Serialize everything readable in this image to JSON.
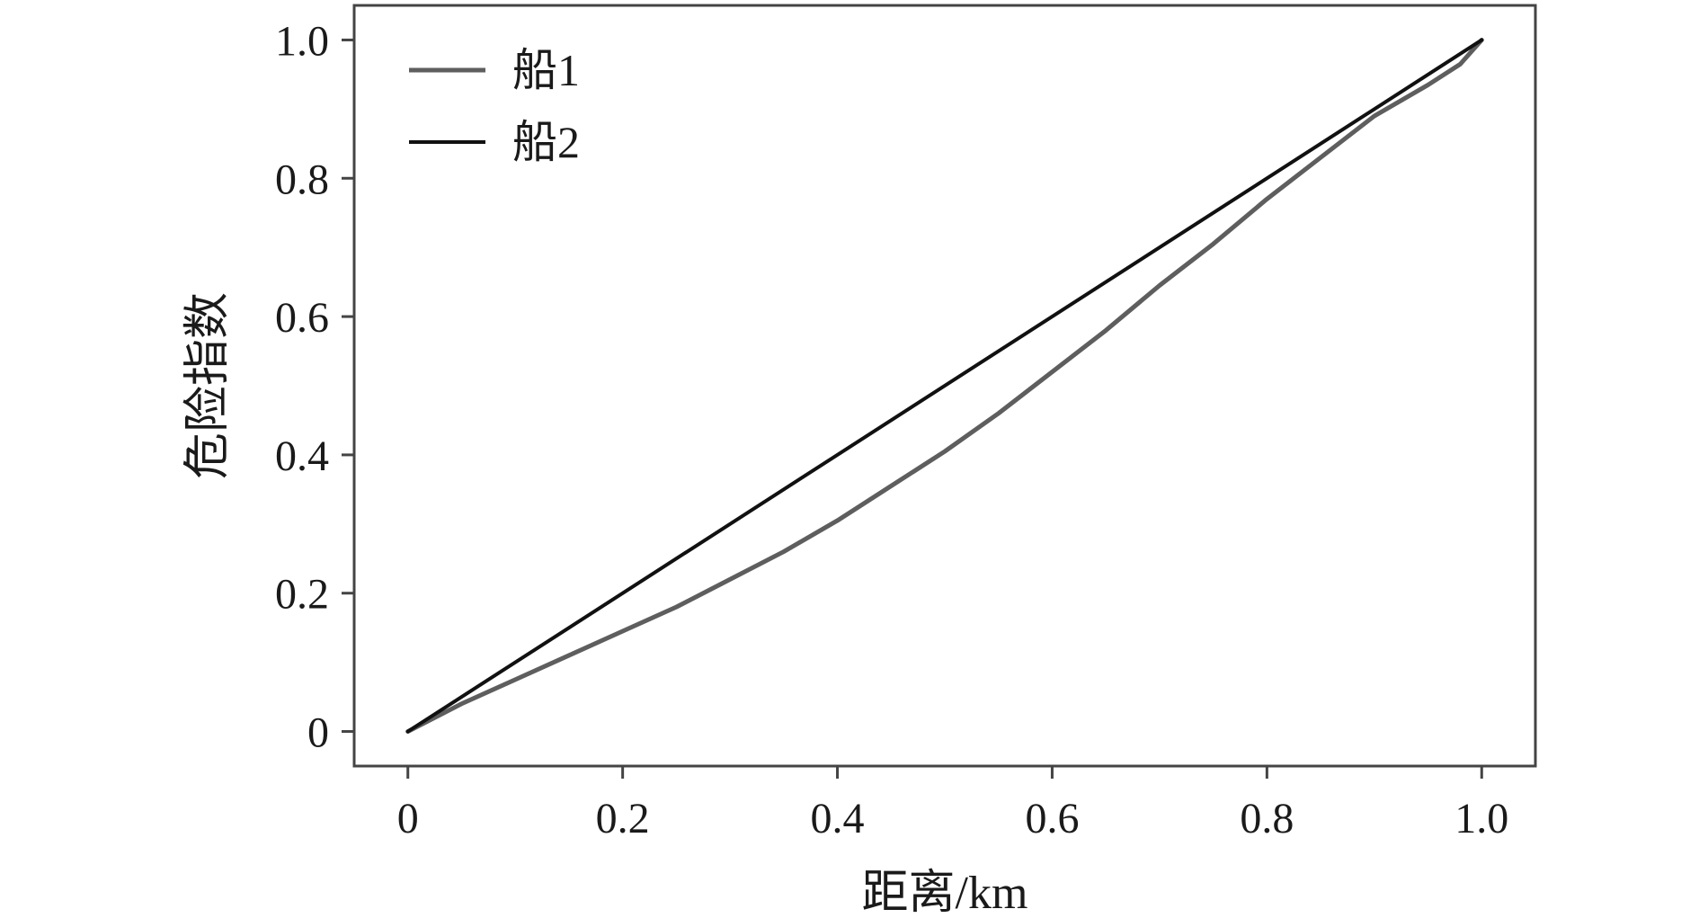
{
  "chart_data": {
    "type": "line",
    "title": "",
    "xlabel": "距离/km",
    "ylabel": "危险指数",
    "xlim": [
      -0.05,
      1.05
    ],
    "ylim": [
      -0.05,
      1.05
    ],
    "x_ticks": [
      0,
      0.2,
      0.4,
      0.6,
      0.8,
      1.0
    ],
    "x_tick_labels": [
      "0",
      "0.2",
      "0.4",
      "0.6",
      "0.8",
      "1.0"
    ],
    "y_ticks": [
      0,
      0.2,
      0.4,
      0.6,
      0.8,
      1.0
    ],
    "y_tick_labels": [
      "0",
      "0.2",
      "0.4",
      "0.6",
      "0.8",
      "1.0"
    ],
    "grid": false,
    "legend_position": "top-left",
    "series": [
      {
        "name": "船1",
        "color": "#5e5e5e",
        "x": [
          0,
          0.05,
          0.1,
          0.15,
          0.2,
          0.25,
          0.3,
          0.35,
          0.4,
          0.45,
          0.5,
          0.55,
          0.6,
          0.65,
          0.7,
          0.75,
          0.8,
          0.85,
          0.9,
          0.95,
          0.98,
          1.0
        ],
        "y": [
          0,
          0.04,
          0.075,
          0.11,
          0.145,
          0.18,
          0.22,
          0.26,
          0.305,
          0.355,
          0.405,
          0.46,
          0.52,
          0.58,
          0.645,
          0.705,
          0.77,
          0.83,
          0.89,
          0.935,
          0.965,
          1.0
        ]
      },
      {
        "name": "船2",
        "color": "#111111",
        "x": [
          0,
          1.0
        ],
        "y": [
          0,
          1.0
        ]
      }
    ]
  }
}
